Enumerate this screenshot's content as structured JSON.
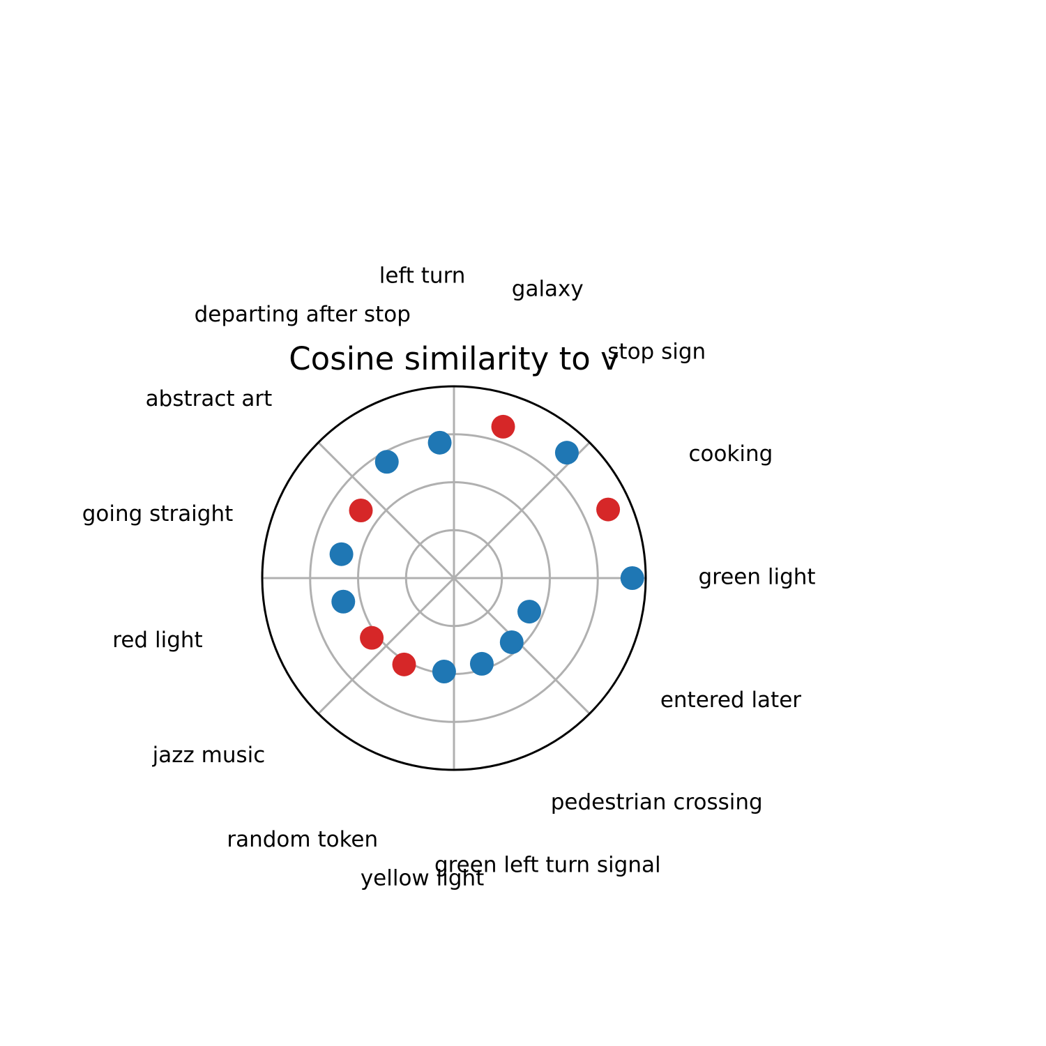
{
  "chart_data": {
    "type": "scatter",
    "projection": "polar",
    "title": "Cosine similarity to v",
    "radial_range": [
      0,
      1
    ],
    "radial_gridlines": [
      0.25,
      0.5,
      0.75
    ],
    "angular_gridlines_deg": [
      0,
      45,
      90,
      135,
      180,
      225,
      270,
      315
    ],
    "grid": true,
    "tick_labels_shown": false,
    "colors": {
      "positive": "#1f77b4",
      "negative": "#d62728",
      "grid": "#b0b0b0",
      "frame": "#000000"
    },
    "points": [
      {
        "label": "green light",
        "angle_deg": 0,
        "r": 0.93,
        "sign": "positive"
      },
      {
        "label": "cooking",
        "angle_deg": 24,
        "r": 0.88,
        "sign": "negative"
      },
      {
        "label": "stop sign",
        "angle_deg": 48,
        "r": 0.88,
        "sign": "positive"
      },
      {
        "label": "galaxy",
        "angle_deg": 72,
        "r": 0.83,
        "sign": "negative"
      },
      {
        "label": "left turn",
        "angle_deg": 96,
        "r": 0.71,
        "sign": "positive"
      },
      {
        "label": "departing after stop",
        "angle_deg": 120,
        "r": 0.7,
        "sign": "positive"
      },
      {
        "label": "abstract art",
        "angle_deg": 144,
        "r": 0.6,
        "sign": "negative"
      },
      {
        "label": "going straight",
        "angle_deg": 168,
        "r": 0.6,
        "sign": "positive"
      },
      {
        "label": "red light",
        "angle_deg": 192,
        "r": 0.59,
        "sign": "positive"
      },
      {
        "label": "jazz music",
        "angle_deg": 216,
        "r": 0.53,
        "sign": "negative"
      },
      {
        "label": "random token",
        "angle_deg": 240,
        "r": 0.52,
        "sign": "negative"
      },
      {
        "label": "yellow light",
        "angle_deg": 264,
        "r": 0.49,
        "sign": "positive"
      },
      {
        "label": "green left turn signal",
        "angle_deg": 288,
        "r": 0.47,
        "sign": "positive"
      },
      {
        "label": "pedestrian crossing",
        "angle_deg": 312,
        "r": 0.45,
        "sign": "positive"
      },
      {
        "label": "entered later",
        "angle_deg": 336,
        "r": 0.43,
        "sign": "positive"
      }
    ]
  }
}
